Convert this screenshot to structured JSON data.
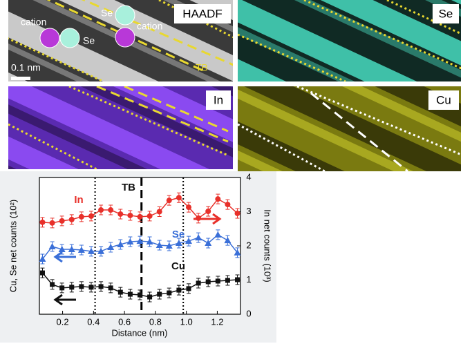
{
  "panels": {
    "haadf": {
      "tag": "HAADF",
      "labels": [
        "cation",
        "Se",
        "Se",
        "cation"
      ],
      "scale_bar": "0.1 nm",
      "boundary": "TB"
    },
    "se": {
      "tag": "Se"
    },
    "in": {
      "tag": "In"
    },
    "cu": {
      "tag": "Cu"
    }
  },
  "chart_data": {
    "type": "line",
    "x": [
      0.07,
      0.133,
      0.196,
      0.259,
      0.322,
      0.385,
      0.448,
      0.511,
      0.574,
      0.637,
      0.7,
      0.763,
      0.826,
      0.889,
      0.952,
      1.015,
      1.078,
      1.141,
      1.204,
      1.267,
      1.33
    ],
    "xlim": [
      0.05,
      1.35
    ],
    "xticks": [
      0.2,
      0.4,
      0.6,
      0.8,
      {
        "value": 1.0,
        "label": "1.0"
      },
      1.2
    ],
    "xlabel": "Distance (nm)",
    "ylabel": "Cu, Se net counts (10²)",
    "ylim": [
      0,
      8
    ],
    "y2label": "In net counts (10³)",
    "y2lim": [
      0,
      4
    ],
    "y2ticks": [
      0,
      1,
      2,
      3,
      4
    ],
    "series": [
      {
        "name": "In",
        "color": "#e8302a",
        "marker": "circle",
        "axis": "y2",
        "values": [
          2.69,
          2.67,
          2.73,
          2.77,
          2.85,
          2.87,
          3.05,
          3.05,
          2.93,
          2.89,
          2.85,
          2.87,
          3.0,
          3.33,
          3.41,
          3.13,
          2.81,
          3.01,
          3.37,
          3.21,
          2.95
        ]
      },
      {
        "name": "Se",
        "color": "#3a6fd8",
        "marker": "triangle",
        "values": [
          3.23,
          3.96,
          3.8,
          3.8,
          3.76,
          3.68,
          3.68,
          3.92,
          4.08,
          4.24,
          4.28,
          4.24,
          4.04,
          4.0,
          4.16,
          4.28,
          4.48,
          4.16,
          4.65,
          4.32,
          3.6
        ]
      },
      {
        "name": "Cu",
        "color": "#111111",
        "marker": "square",
        "values": [
          2.42,
          1.74,
          1.54,
          1.58,
          1.62,
          1.58,
          1.62,
          1.54,
          1.29,
          1.17,
          1.13,
          1.01,
          1.17,
          1.25,
          1.41,
          1.5,
          1.82,
          1.9,
          1.94,
          1.98,
          2.02
        ]
      }
    ],
    "vlines": [
      {
        "x": 0.41,
        "style": "dotted"
      },
      {
        "x": 0.71,
        "style": "dashed"
      },
      {
        "x": 0.98,
        "style": "dotted"
      }
    ],
    "annotations": [
      {
        "text": "In",
        "color": "#e8302a"
      },
      {
        "text": "Se",
        "color": "#3a6fd8"
      },
      {
        "text": "Cu",
        "color": "#111111"
      },
      {
        "text": "TB",
        "color": "#111111"
      }
    ]
  }
}
